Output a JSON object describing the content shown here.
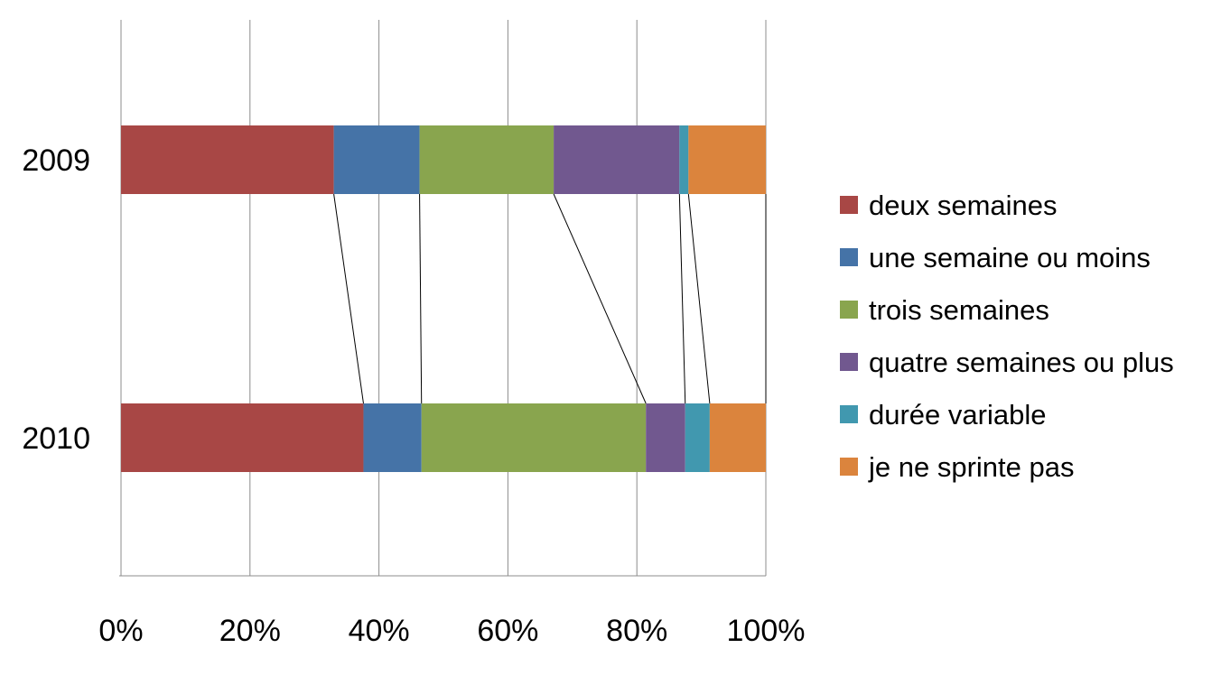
{
  "chart_data": {
    "type": "bar",
    "orientation": "horizontal",
    "stacked": "100%",
    "categories": [
      "2009",
      "2010"
    ],
    "series": [
      {
        "name": "deux semaines",
        "color": "#A84745",
        "values": [
          33.0,
          37.6
        ]
      },
      {
        "name": "une semaine ou moins",
        "color": "#4573A7",
        "values": [
          13.3,
          9.0
        ]
      },
      {
        "name": "trois semaines",
        "color": "#89A54E",
        "values": [
          20.8,
          34.8
        ]
      },
      {
        "name": "quatre semaines ou plus",
        "color": "#71588F",
        "values": [
          19.5,
          6.1
        ]
      },
      {
        "name": "durée variable",
        "color": "#4198AF",
        "values": [
          1.4,
          3.8
        ]
      },
      {
        "name": "je ne sprinte pas",
        "color": "#DB843D",
        "values": [
          12.0,
          8.7
        ]
      }
    ],
    "x_ticks": [
      "0%",
      "20%",
      "40%",
      "60%",
      "80%",
      "100%"
    ],
    "xlim": [
      0,
      100
    ],
    "grid": true,
    "legend_position": "right",
    "series_lines": true
  }
}
